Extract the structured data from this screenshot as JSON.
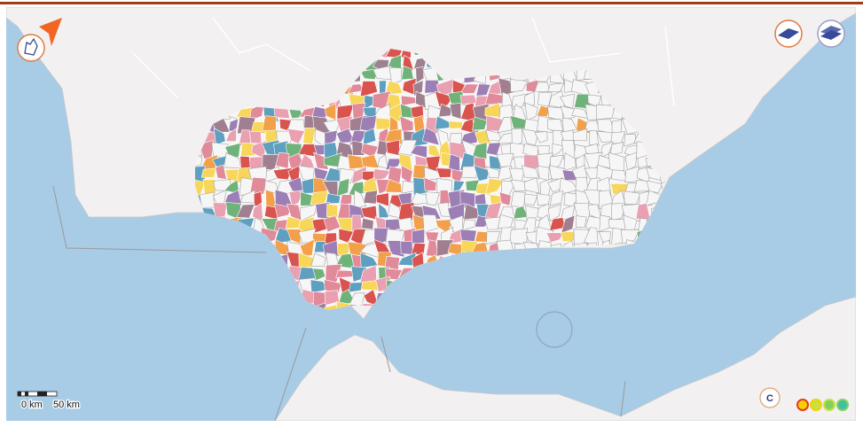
{
  "scale_bar": {
    "labels": [
      "0 km",
      "50 km"
    ]
  },
  "attribution_button": "C"
}
